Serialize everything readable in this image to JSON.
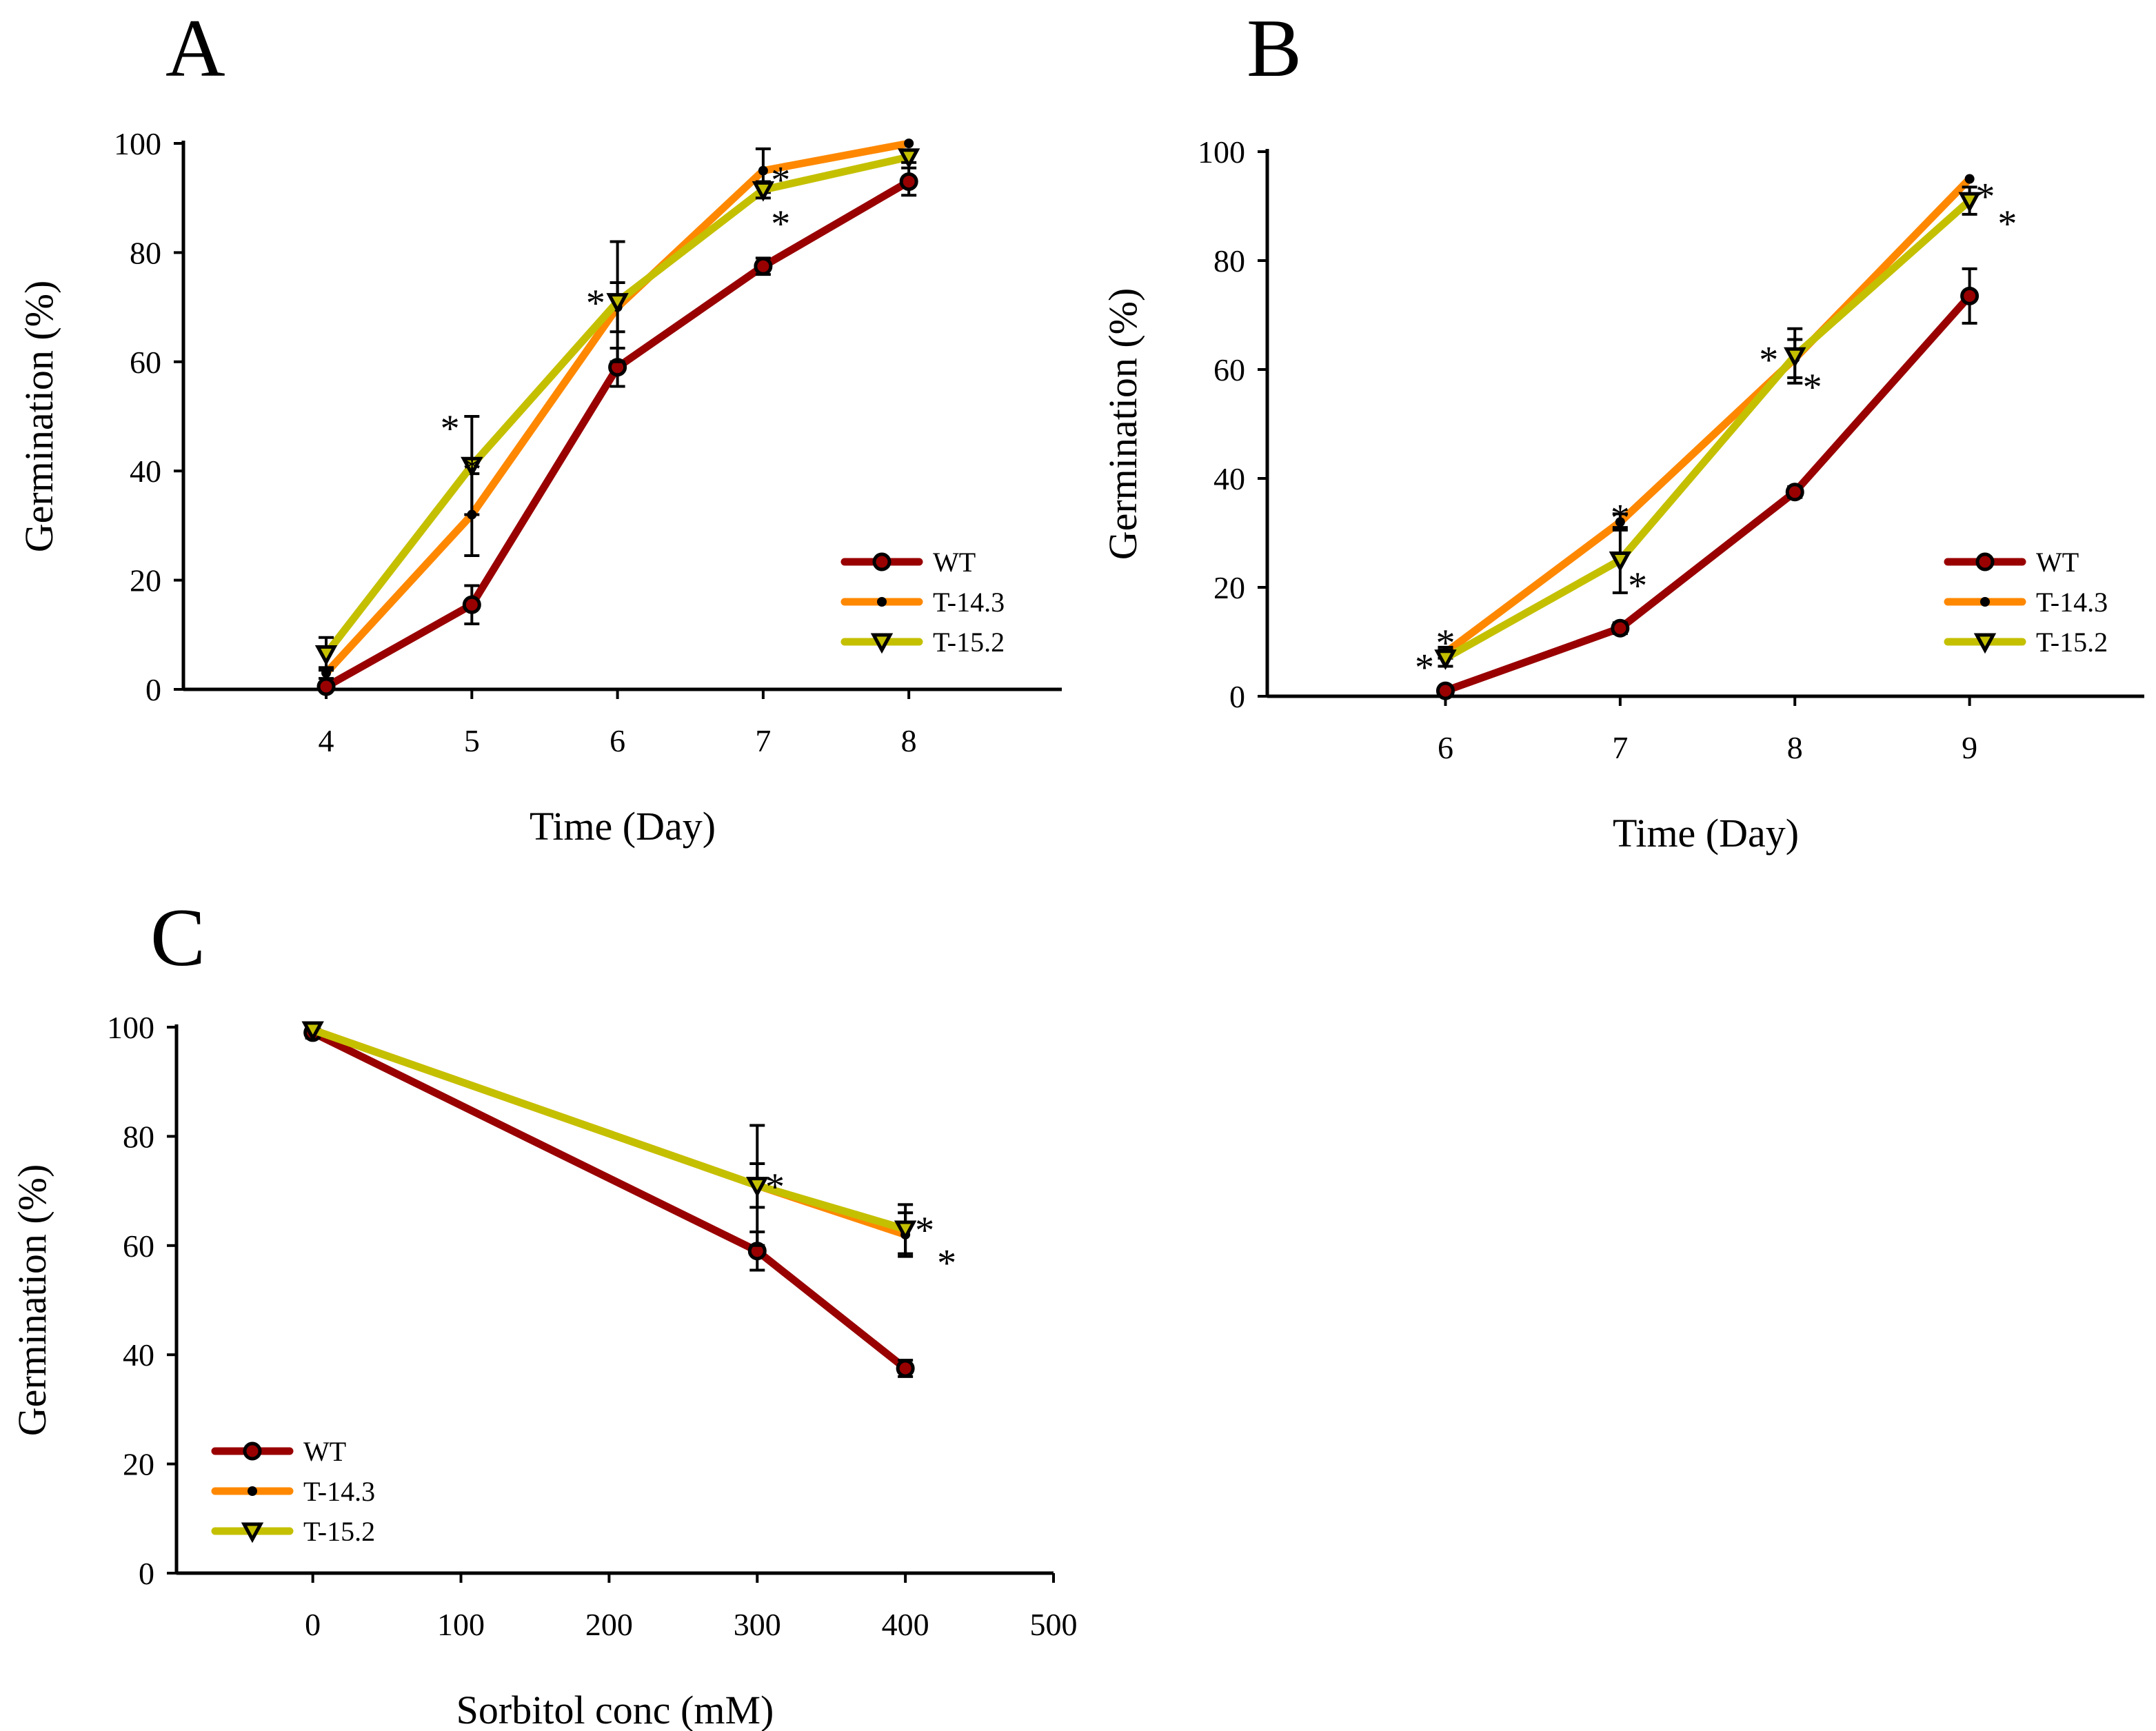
{
  "colors": {
    "WT": "#990000",
    "T-14.3": "#ff8800",
    "T-15.2": "#c4c000",
    "axis": "#000000"
  },
  "chart_data": [
    {
      "panel": "A",
      "type": "line",
      "xlabel": "Time (Day)",
      "ylabel": "Germination (%)",
      "xlim": [
        3.02,
        9.05
      ],
      "ylim": [
        0,
        100
      ],
      "xticks": [
        4,
        5,
        6,
        7,
        8
      ],
      "yticks": [
        0,
        20,
        40,
        60,
        80,
        100
      ],
      "legend": "bottom-right",
      "x": [
        4,
        5,
        6,
        7,
        8
      ],
      "series": [
        {
          "name": "WT",
          "values": [
            0.5,
            15.5,
            59,
            77.5,
            93
          ],
          "errors": [
            0.5,
            3.5,
            3.5,
            1.5,
            2.5
          ],
          "marker": "circle"
        },
        {
          "name": "T-14.3",
          "values": [
            3,
            32,
            70,
            95,
            100
          ],
          "errors": [
            1,
            7.5,
            4.5,
            4,
            0.5
          ],
          "marker": "dot"
        },
        {
          "name": "T-15.2",
          "values": [
            6.5,
            41,
            71,
            91.5,
            97.5
          ],
          "errors": [
            3,
            9,
            11,
            1.5,
            1
          ],
          "marker": "triangle-down"
        }
      ],
      "annotations": [
        {
          "text": "*",
          "x": 4.85,
          "y": 49
        },
        {
          "text": "*",
          "x": 4.85,
          "y": 41.5
        },
        {
          "text": "*",
          "x": 5.85,
          "y": 72
        },
        {
          "text": "*",
          "x": 7.12,
          "y": 94.5
        },
        {
          "text": "*",
          "x": 7.12,
          "y": 86.5
        }
      ]
    },
    {
      "panel": "B",
      "type": "line",
      "xlabel": "Time (Day)",
      "ylabel": "Germination (%)",
      "xlim": [
        4.98,
        10.0
      ],
      "ylim": [
        0,
        100
      ],
      "xticks": [
        6,
        7,
        8,
        9
      ],
      "yticks": [
        0,
        20,
        40,
        60,
        80,
        100
      ],
      "legend": "right",
      "x": [
        6,
        7,
        8,
        9
      ],
      "series": [
        {
          "name": "WT",
          "values": [
            1,
            12.5,
            37.5,
            73.5
          ],
          "errors": [
            0.5,
            1,
            1,
            5
          ],
          "marker": "circle"
        },
        {
          "name": "T-14.3",
          "values": [
            8,
            32,
            62,
            95
          ],
          "errors": [
            1,
            1.5,
            3.5,
            0.5
          ],
          "marker": "dot"
        },
        {
          "name": "T-15.2",
          "values": [
            7,
            25,
            62.5,
            91
          ],
          "errors": [
            1.5,
            6,
            5,
            2.5
          ],
          "marker": "triangle-down"
        }
      ],
      "annotations": [
        {
          "text": "*",
          "x": 5.88,
          "y": 6.5
        },
        {
          "text": "*",
          "x": 6.0,
          "y": 11
        },
        {
          "text": "*",
          "x": 7.0,
          "y": 34
        },
        {
          "text": "*",
          "x": 7.1,
          "y": 21.5
        },
        {
          "text": "*",
          "x": 7.85,
          "y": 63
        },
        {
          "text": "*",
          "x": 8.1,
          "y": 58
        },
        {
          "text": "*",
          "x": 9.09,
          "y": 93
        },
        {
          "text": "*",
          "x": 9.1,
          "y": 88
        }
      ]
    },
    {
      "panel": "C",
      "type": "line",
      "xlabel": "Sorbitol conc (mM)",
      "ylabel": "Germination (%)",
      "xlim": [
        -92,
        500
      ],
      "ylim": [
        0,
        100
      ],
      "xticks": [
        0,
        100,
        200,
        300,
        400,
        500
      ],
      "yticks": [
        0,
        20,
        40,
        60,
        80,
        100
      ],
      "legend": "bottom-left",
      "x": [
        0,
        300,
        400
      ],
      "series": [
        {
          "name": "WT",
          "values": [
            99,
            59,
            37.5
          ],
          "errors": [
            1,
            3.5,
            1.5
          ],
          "marker": "circle"
        },
        {
          "name": "T-14.3",
          "values": [
            99.5,
            71,
            62
          ],
          "errors": [
            0.5,
            4,
            4
          ],
          "marker": "dot"
        },
        {
          "name": "T-15.2",
          "values": [
            99.5,
            71,
            63
          ],
          "errors": [
            0.5,
            11,
            4.5
          ],
          "marker": "triangle-down"
        }
      ],
      "annotations": [
        {
          "text": "*",
          "x": 312,
          "y": 72
        },
        {
          "text": "*",
          "x": 413,
          "y": 64
        },
        {
          "text": "*",
          "x": 413,
          "y": 58
        }
      ]
    }
  ]
}
